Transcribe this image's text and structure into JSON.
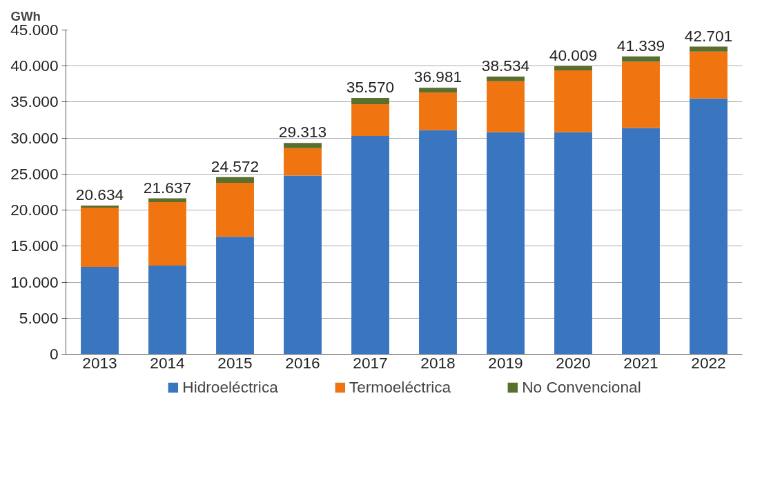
{
  "chart_data": {
    "type": "bar",
    "stacked": true,
    "ylabel": "GWh",
    "categories": [
      "2013",
      "2014",
      "2015",
      "2016",
      "2017",
      "2018",
      "2019",
      "2020",
      "2021",
      "2022"
    ],
    "series": [
      {
        "name": "Hidroeléctrica",
        "color": "#3a75bf",
        "values": [
          12100,
          12300,
          16300,
          24800,
          30300,
          31100,
          30800,
          30800,
          31400,
          35500
        ]
      },
      {
        "name": "Termoeléctrica",
        "color": "#f07510",
        "values": [
          8250,
          8800,
          7500,
          3800,
          4400,
          5200,
          7100,
          8600,
          9200,
          6500
        ]
      },
      {
        "name": "No Convencional",
        "color": "#5a6e2e",
        "values": [
          284,
          537,
          772,
          713,
          870,
          681,
          634,
          609,
          739,
          701
        ]
      }
    ],
    "totals": [
      "20.634",
      "21.637",
      "24.572",
      "29.313",
      "35.570",
      "36.981",
      "38.534",
      "40.009",
      "41.339",
      "42.701"
    ],
    "ylim": [
      0,
      45000
    ],
    "yticks": [
      0,
      {
        "value": 5000,
        "label": "5.000"
      },
      {
        "value": 10000,
        "label": "10.000"
      },
      {
        "value": 15000,
        "label": "15.000"
      },
      {
        "value": 20000,
        "label": "20.000"
      },
      {
        "value": 25000,
        "label": "25.000"
      },
      {
        "value": 30000,
        "label": "30.000"
      },
      {
        "value": 35000,
        "label": "35.000"
      },
      {
        "value": 40000,
        "label": "40.000"
      },
      {
        "value": 45000,
        "label": "45.000"
      }
    ],
    "grid": "y",
    "legend": "bottom"
  }
}
